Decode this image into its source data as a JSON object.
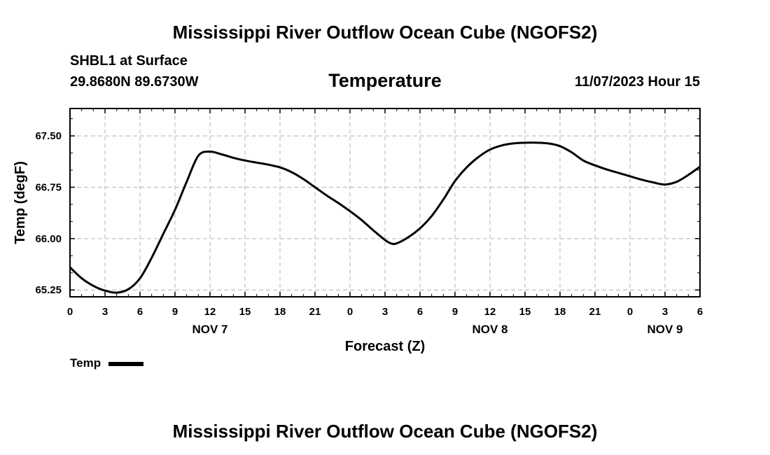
{
  "title": "Mississippi River Outflow Ocean Cube (NGOFS2)",
  "footer_title": "Mississippi River Outflow Ocean Cube (NGOFS2)",
  "station": "SHBL1 at Surface",
  "coords": "29.8680N  89.6730W",
  "variable": "Temperature",
  "timestamp": "11/07/2023 Hour 15",
  "legend": {
    "label": "Temp",
    "color": "#000000"
  },
  "chart_data": {
    "type": "line",
    "title": "Temperature",
    "xlabel": "Forecast (Z)",
    "ylabel": "Temp (degF)",
    "xlim": [
      0,
      54
    ],
    "ylim": [
      65.15,
      67.9
    ],
    "yticks": [
      65.25,
      66.0,
      66.75,
      67.5
    ],
    "ytick_labels": [
      "65.25",
      "66.00",
      "66.75",
      "67.50"
    ],
    "xticks": [
      0,
      3,
      6,
      9,
      12,
      15,
      18,
      21,
      24,
      27,
      30,
      33,
      36,
      39,
      42,
      45,
      48,
      51,
      54
    ],
    "xtick_labels": [
      "0",
      "3",
      "6",
      "9",
      "12",
      "15",
      "18",
      "21",
      "0",
      "3",
      "6",
      "9",
      "12",
      "15",
      "18",
      "21",
      "0",
      "3",
      "6"
    ],
    "date_labels": [
      {
        "x": 12,
        "label": "NOV 7"
      },
      {
        "x": 36,
        "label": "NOV 8"
      },
      {
        "x": 51,
        "label": "NOV 9"
      }
    ],
    "grid": true,
    "series": [
      {
        "name": "Temp",
        "color": "#000000",
        "x": [
          0,
          1,
          2,
          3,
          4,
          5,
          6,
          7,
          8,
          9,
          10,
          11,
          12,
          13,
          14,
          15,
          16,
          17,
          18,
          19,
          20,
          21,
          22,
          23,
          24,
          25,
          26,
          27,
          27.5,
          28,
          29,
          30,
          31,
          32,
          33,
          34,
          35,
          36,
          37,
          38,
          39,
          40,
          41,
          42,
          43,
          44,
          45,
          46,
          47,
          48,
          49,
          50,
          51,
          52,
          53,
          54
        ],
        "values": [
          65.58,
          65.42,
          65.31,
          65.24,
          65.21,
          65.26,
          65.42,
          65.72,
          66.07,
          66.42,
          66.83,
          67.21,
          67.27,
          67.23,
          67.18,
          67.14,
          67.11,
          67.08,
          67.04,
          66.97,
          66.87,
          66.75,
          66.63,
          66.52,
          66.4,
          66.27,
          66.12,
          65.98,
          65.93,
          65.93,
          66.02,
          66.15,
          66.33,
          66.57,
          66.84,
          67.04,
          67.19,
          67.3,
          67.36,
          67.39,
          67.4,
          67.4,
          67.39,
          67.35,
          67.26,
          67.14,
          67.07,
          67.01,
          66.96,
          66.91,
          66.86,
          66.82,
          66.79,
          66.83,
          66.93,
          67.05
        ]
      }
    ]
  }
}
